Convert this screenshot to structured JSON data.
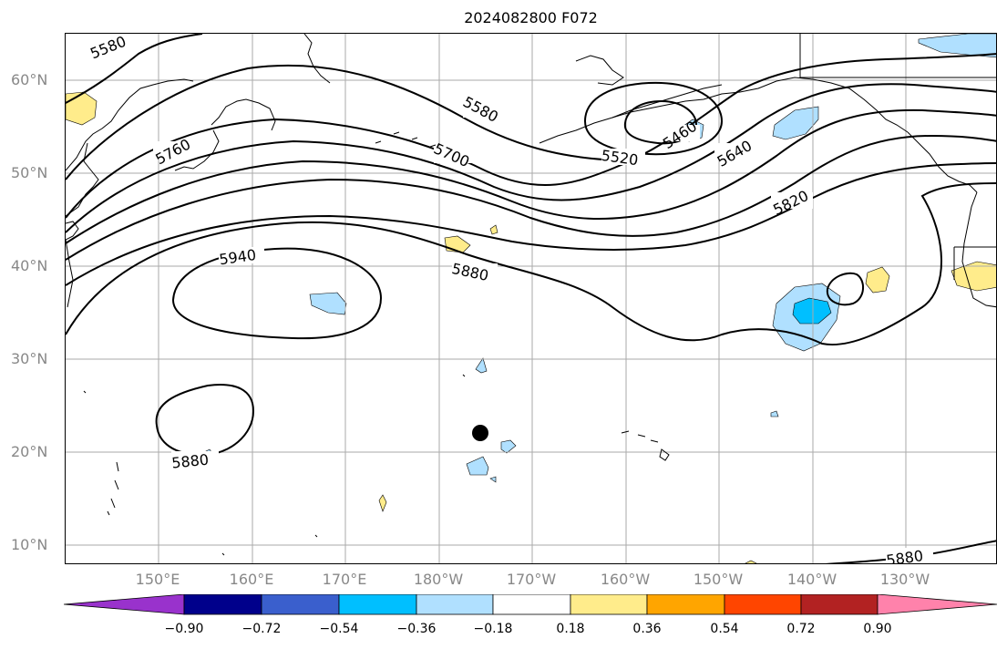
{
  "title": "2024082800 F072",
  "lat_labels": [
    "60°N",
    "50°N",
    "40°N",
    "30°N",
    "20°N",
    "10°N"
  ],
  "lon_labels": [
    "150°E",
    "160°E",
    "170°E",
    "180°W",
    "170°W",
    "160°W",
    "150°W",
    "140°W",
    "130°W"
  ],
  "contour_labels": [
    "5580",
    "5760",
    "5580",
    "5700",
    "5520",
    "5460",
    "5640",
    "5820",
    "5940",
    "5880",
    "5880",
    "5880"
  ],
  "colorbar": {
    "ticks": [
      "−0.90",
      "−0.72",
      "−0.54",
      "−0.36",
      "−0.18",
      "0.18",
      "0.36",
      "0.54",
      "0.72",
      "0.90"
    ],
    "colors": [
      "#9932cc",
      "#00008b",
      "#3a5fcd",
      "#00bfff",
      "#b0e0ff",
      "#ffffff",
      "#ffec8b",
      "#ffa500",
      "#ff4500",
      "#b22222",
      "#ff82ab"
    ]
  },
  "marker": "storm-center-dot"
}
